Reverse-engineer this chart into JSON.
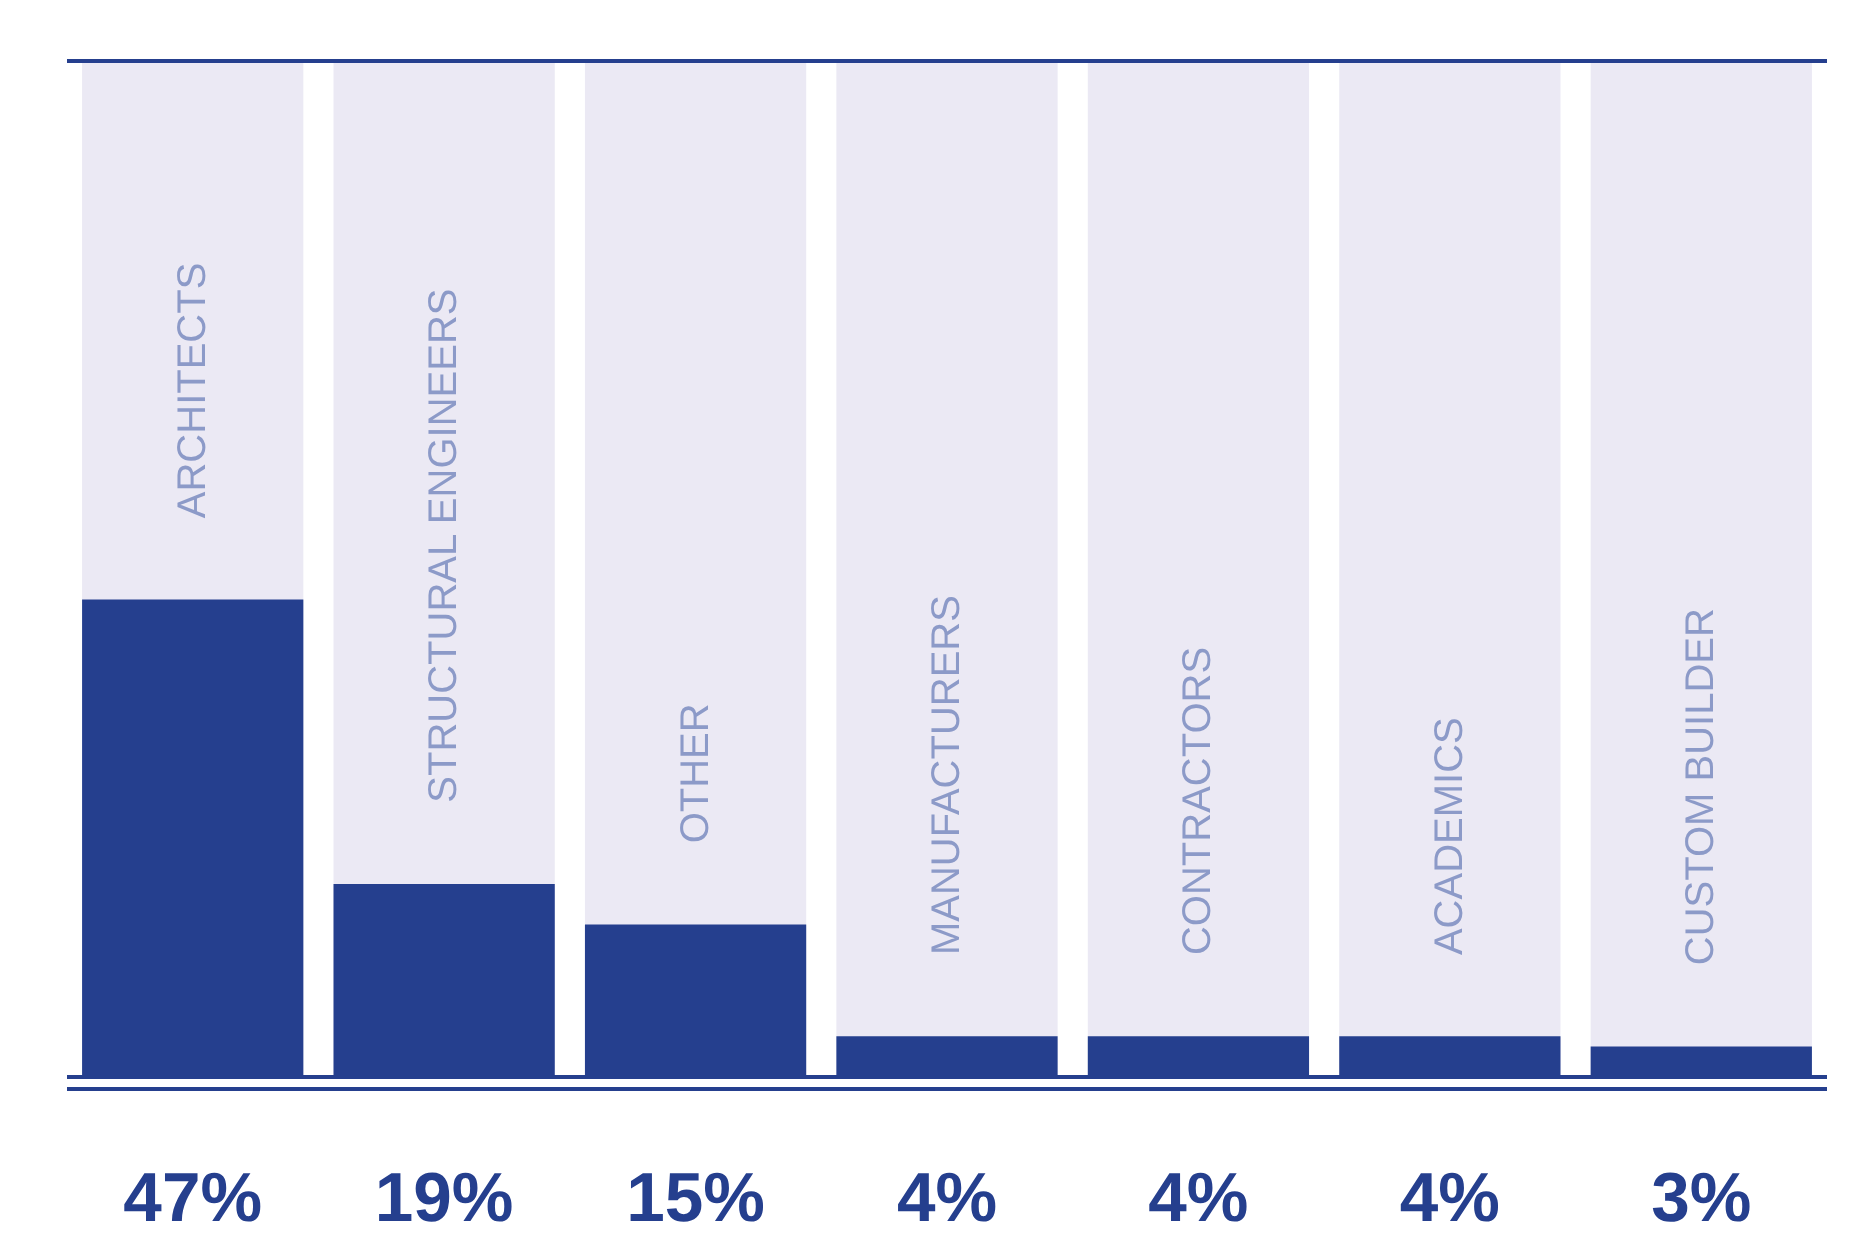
{
  "chart_data": {
    "type": "bar",
    "categories": [
      "ARCHITECTS",
      "STRUCTURAL ENGINEERS",
      "OTHER",
      "MANUFACTURERS",
      "CONTRACTORS",
      "ACADEMICS",
      "CUSTOM BUILDER"
    ],
    "series": [
      {
        "color": "#253f8e",
        "values": [
          47,
          19,
          15,
          4,
          4,
          4,
          3
        ],
        "value_labels": [
          "47%",
          "19%",
          "15%",
          "4%",
          "4%",
          "4%",
          "3%"
        ]
      }
    ],
    "ylim": [
      0,
      100
    ],
    "tick_labels": false,
    "grid": false
  }
}
